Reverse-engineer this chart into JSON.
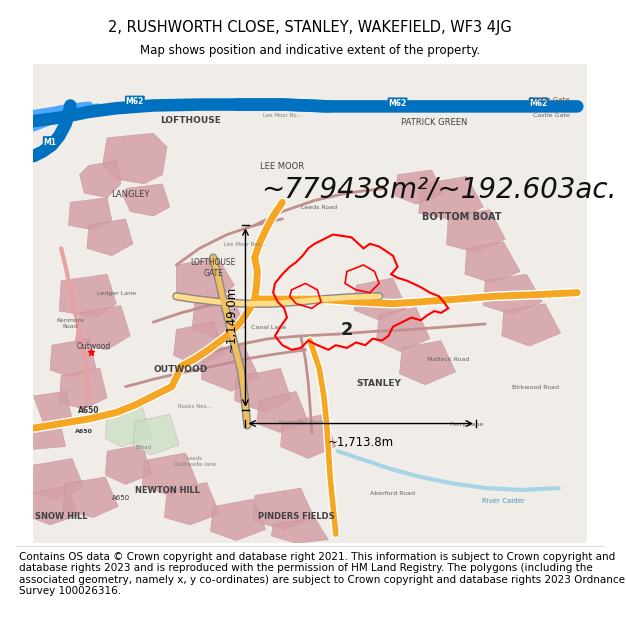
{
  "title_line1": "2, RUSHWORTH CLOSE, STANLEY, WAKEFIELD, WF3 4JG",
  "title_line2": "Map shows position and indicative extent of the property.",
  "area_text": "~779438m²/~192.603ac.",
  "scale_h": "~1,713.8m",
  "scale_v": "~1,149.0m",
  "label_number": "2",
  "footer_text": "Contains OS data © Crown copyright and database right 2021. This information is subject to Crown copyright and database rights 2023 and is reproduced with the permission of HM Land Registry. The polygons (including the associated geometry, namely x, y co-ordinates) are subject to Crown copyright and database rights 2023 Ordnance Survey 100026316.",
  "title_fontsize": 10.5,
  "subtitle_fontsize": 8.5,
  "footer_fontsize": 7.5,
  "area_fontsize": 20,
  "scale_fontsize": 8.5,
  "background_color": "#ffffff"
}
